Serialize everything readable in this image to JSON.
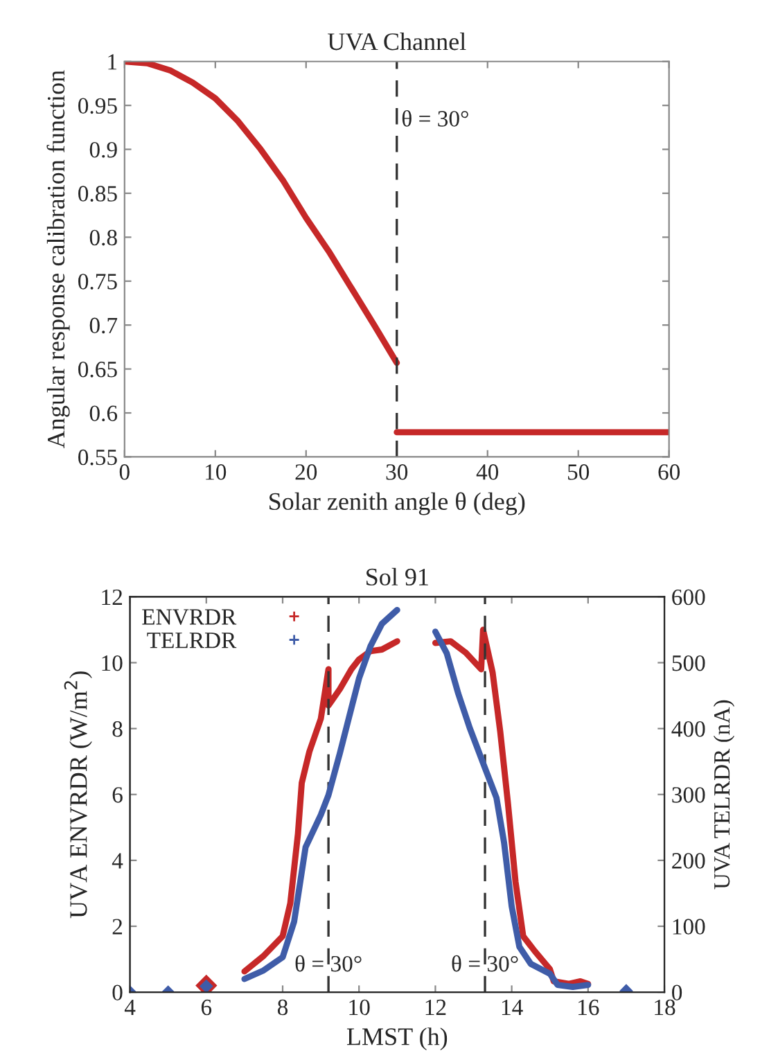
{
  "chart_data": [
    {
      "type": "line",
      "title": "UVA Channel",
      "xlabel": "Solar zenith angle θ (deg)",
      "ylabel": "Angular response calibration function",
      "xlim": [
        0,
        60
      ],
      "xticks": [
        0,
        10,
        20,
        30,
        40,
        50,
        60
      ],
      "ylim": [
        0.55,
        1
      ],
      "yticks": [
        0.55,
        0.6,
        0.65,
        0.7,
        0.75,
        0.8,
        0.85,
        0.9,
        0.95,
        1
      ],
      "series": [
        {
          "color": "#c62828",
          "x": [
            0,
            2.5,
            5,
            7.5,
            10,
            12.5,
            15,
            17.5,
            20,
            22.5,
            25,
            27.5,
            30
          ],
          "values": [
            1.0,
            0.998,
            0.99,
            0.976,
            0.958,
            0.932,
            0.9,
            0.864,
            0.822,
            0.784,
            0.742,
            0.7,
            0.657
          ]
        },
        {
          "color": "#c62828",
          "x": [
            30,
            60
          ],
          "values": [
            0.578,
            0.578
          ]
        }
      ],
      "ref_lines": [
        {
          "axis": "x",
          "value": 30,
          "label": "θ = 30°",
          "line_style": "dashed",
          "color": "#333333"
        }
      ],
      "grid": false,
      "legend": false
    },
    {
      "type": "line",
      "title": "Sol 91",
      "xlabel": "LMST (h)",
      "ylabel": "UVA ENVRDR (W/m$^{2}$)",
      "y2label": "UVA TELRDR (nA)",
      "xlim": [
        4,
        18
      ],
      "xticks": [
        4,
        6,
        8,
        10,
        12,
        14,
        16,
        18
      ],
      "ylim": [
        0,
        12
      ],
      "yticks": [
        0,
        2,
        4,
        6,
        8,
        10,
        12
      ],
      "y2lim": [
        0,
        600
      ],
      "y2ticks": [
        0,
        100,
        200,
        300,
        400,
        500,
        600
      ],
      "series": [
        {
          "name": "ENVRDR",
          "color": "#c62828",
          "x": [
            6,
            6.5,
            7.0,
            7.5,
            8.0,
            8.2,
            8.4,
            8.5,
            8.7,
            9.0,
            9.2,
            9.2,
            9.5,
            9.8,
            10.0,
            10.3,
            10.6,
            11.0,
            11.5,
            12.0,
            12.4,
            12.8,
            13.2,
            13.25,
            13.5,
            13.7,
            13.9,
            14.1,
            14.3,
            14.6,
            15.0,
            15.1,
            15.5,
            15.8,
            16.0
          ],
          "values": [
            0.2,
            null,
            0.63,
            1.1,
            1.7,
            2.7,
            4.8,
            6.35,
            7.3,
            8.3,
            9.8,
            8.7,
            9.2,
            9.8,
            10.1,
            10.35,
            10.4,
            10.65,
            null,
            10.6,
            10.65,
            10.3,
            9.8,
            11.0,
            9.7,
            7.9,
            5.75,
            3.35,
            1.7,
            1.25,
            0.7,
            0.33,
            0.25,
            0.33,
            0.25
          ]
        },
        {
          "name": "TELRDR",
          "color": "#3f5ca8",
          "axis": "y2",
          "x": [
            4,
            4.5,
            5,
            5.5,
            6,
            6.5,
            7.0,
            7.5,
            8.0,
            8.3,
            8.6,
            9.0,
            9.2,
            9.5,
            9.8,
            10.0,
            10.3,
            10.6,
            11.0,
            11.5,
            12.0,
            12.3,
            12.6,
            12.9,
            13.3,
            13.6,
            13.8,
            14.0,
            14.2,
            14.5,
            15.0,
            15.2,
            15.6,
            16.0,
            16.5,
            17
          ],
          "values": [
            0,
            null,
            0,
            null,
            9,
            null,
            20,
            33,
            53,
            107,
            220,
            269,
            299,
            363,
            431,
            476,
            525,
            559,
            580,
            null,
            547,
            514,
            453,
            401,
            340,
            295,
            227,
            130,
            69,
            43,
            28,
            11,
            8,
            11,
            null,
            2
          ]
        }
      ],
      "ref_lines": [
        {
          "axis": "x",
          "value": 9.2,
          "line_style": "dashed",
          "color": "#333333"
        },
        {
          "axis": "x",
          "value": 13.3,
          "line_style": "dashed",
          "color": "#333333"
        }
      ],
      "annotations": [
        {
          "text": "θ = 30°",
          "x": 9.2,
          "y": 0.8
        },
        {
          "text": "θ = 30°",
          "x": 13.3,
          "y": 0.8
        }
      ],
      "grid": false,
      "legend": "top left"
    }
  ]
}
